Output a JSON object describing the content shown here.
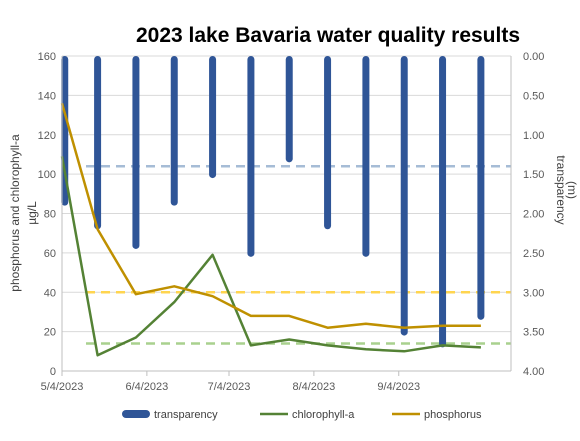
{
  "chart_data": {
    "type": "bar+line",
    "title": "2023 lake Bavaria water quality results",
    "x_tick_labels": [
      "5/4/2023",
      "6/4/2023",
      "7/4/2023",
      "8/4/2023",
      "9/4/2023"
    ],
    "x_tick_dates": [
      "2023-05-04",
      "2023-06-04",
      "2023-07-04",
      "2023-08-04",
      "2023-09-04"
    ],
    "x_range": [
      "2023-05-04",
      "2023-10-15"
    ],
    "y_left": {
      "label": "phosphorus and chlorophyll-a",
      "unit": "µg/L",
      "range": [
        0,
        160
      ],
      "ticks": [
        "0",
        "20",
        "40",
        "60",
        "80",
        "100",
        "120",
        "140",
        "160"
      ]
    },
    "y_right": {
      "label": "transparency",
      "unit": "(m)",
      "range": [
        0,
        4
      ],
      "inverted": true,
      "ticks": [
        "0.00",
        "0.50",
        "1.00",
        "1.50",
        "2.00",
        "2.50",
        "3.00",
        "3.50",
        "4.00"
      ]
    },
    "gridlines": true,
    "legend_position": "bottom",
    "series": [
      {
        "name": "transparency",
        "kind": "bar",
        "axis": "right",
        "color": "#2f5597",
        "x": [
          "2023-05-05",
          "2023-05-17",
          "2023-05-31",
          "2023-06-14",
          "2023-06-28",
          "2023-07-12",
          "2023-07-26",
          "2023-08-09",
          "2023-08-23",
          "2023-09-06",
          "2023-09-20",
          "2023-10-04"
        ],
        "values": [
          1.9,
          2.2,
          2.45,
          1.9,
          1.55,
          2.55,
          1.35,
          2.2,
          2.55,
          3.55,
          3.7,
          3.35
        ]
      },
      {
        "name": "chlorophyll-a",
        "kind": "line",
        "axis": "left",
        "color": "#548235",
        "x": [
          "2023-05-04",
          "2023-05-17",
          "2023-05-31",
          "2023-06-14",
          "2023-06-28",
          "2023-07-12",
          "2023-07-26",
          "2023-08-09",
          "2023-08-23",
          "2023-09-06",
          "2023-09-20",
          "2023-10-04"
        ],
        "values": [
          109,
          8,
          17,
          35,
          59,
          13,
          16,
          13,
          11,
          10,
          13,
          12
        ]
      },
      {
        "name": "phosphorus",
        "kind": "line",
        "axis": "left",
        "color": "#bf9000",
        "x": [
          "2023-05-04",
          "2023-05-17",
          "2023-05-31",
          "2023-06-14",
          "2023-06-28",
          "2023-07-12",
          "2023-07-26",
          "2023-08-09",
          "2023-08-23",
          "2023-09-06",
          "2023-09-20",
          "2023-10-04"
        ],
        "values": [
          136,
          72,
          39,
          43,
          38,
          28,
          28,
          22,
          24,
          22,
          23,
          23
        ]
      }
    ],
    "reference_lines": [
      {
        "series": "transparency",
        "axis": "right",
        "value": 1.4,
        "color": "#a6bcd6",
        "style": "dashed"
      },
      {
        "series": "phosphorus",
        "axis": "left",
        "value": 40,
        "color": "#ffd54f",
        "style": "dashed"
      },
      {
        "series": "chlorophyll-a",
        "axis": "left",
        "value": 14,
        "color": "#a9d18e",
        "style": "dashed"
      }
    ]
  }
}
